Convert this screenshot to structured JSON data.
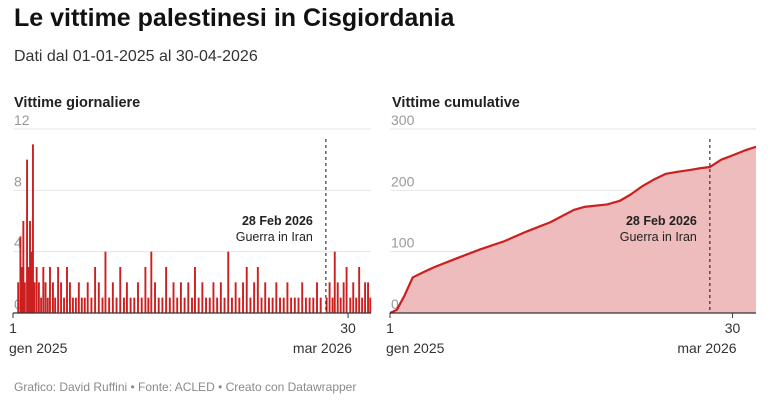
{
  "title": "Le vittime palestinesi in Cisgiordania",
  "subtitle": "Dati dal 01-01-2025 al 30-04-2026",
  "footer": "Grafico: David Ruffini • Fonte: ACLED • Creato con Datawrapper",
  "colors": {
    "series": "#cc1f1f",
    "area_fill": "#eebcbc",
    "grid": "#e6e6e6",
    "axis": "#333333"
  },
  "chart_data": [
    {
      "type": "bar",
      "title": "Vittime giornaliere",
      "x_range": [
        "2025-01-01",
        "2026-04-30"
      ],
      "ylim": [
        0,
        12
      ],
      "y_ticks": [
        0,
        4,
        8,
        12
      ],
      "x_ticks": [
        {
          "date": "2025-01-01",
          "day": "1",
          "month": "gen 2025"
        },
        {
          "date": "2026-03-30",
          "day": "30",
          "month": "mar 2026"
        }
      ],
      "annotation": {
        "date": "2026-02-28",
        "label": "28 Feb 2026",
        "text": "Guerra in Iran"
      },
      "grid": true,
      "series": [
        {
          "values_by_date": [
            [
              "2025-01-08",
              2
            ],
            [
              "2025-01-11",
              5
            ],
            [
              "2025-01-13",
              3
            ],
            [
              "2025-01-15",
              6
            ],
            [
              "2025-01-17",
              2
            ],
            [
              "2025-01-20",
              10
            ],
            [
              "2025-01-22",
              3
            ],
            [
              "2025-01-24",
              6
            ],
            [
              "2025-01-26",
              4
            ],
            [
              "2025-01-28",
              11
            ],
            [
              "2025-01-30",
              2
            ],
            [
              "2025-02-02",
              3
            ],
            [
              "2025-02-05",
              2
            ],
            [
              "2025-02-08",
              1
            ],
            [
              "2025-02-11",
              3
            ],
            [
              "2025-02-14",
              2
            ],
            [
              "2025-02-17",
              1
            ],
            [
              "2025-02-20",
              3
            ],
            [
              "2025-02-24",
              2
            ],
            [
              "2025-02-27",
              1
            ],
            [
              "2025-03-03",
              3
            ],
            [
              "2025-03-07",
              2
            ],
            [
              "2025-03-11",
              1
            ],
            [
              "2025-03-15",
              3
            ],
            [
              "2025-03-19",
              2
            ],
            [
              "2025-03-23",
              1
            ],
            [
              "2025-03-27",
              1
            ],
            [
              "2025-03-31",
              2
            ],
            [
              "2025-04-04",
              1
            ],
            [
              "2025-04-08",
              1
            ],
            [
              "2025-04-12",
              2
            ],
            [
              "2025-04-17",
              1
            ],
            [
              "2025-04-22",
              3
            ],
            [
              "2025-04-27",
              2
            ],
            [
              "2025-05-02",
              1
            ],
            [
              "2025-05-06",
              4
            ],
            [
              "2025-05-11",
              1
            ],
            [
              "2025-05-16",
              2
            ],
            [
              "2025-05-21",
              1
            ],
            [
              "2025-05-26",
              3
            ],
            [
              "2025-05-31",
              1
            ],
            [
              "2025-06-04",
              2
            ],
            [
              "2025-06-09",
              1
            ],
            [
              "2025-06-14",
              1
            ],
            [
              "2025-06-19",
              2
            ],
            [
              "2025-06-24",
              1
            ],
            [
              "2025-06-29",
              3
            ],
            [
              "2025-07-03",
              1
            ],
            [
              "2025-07-07",
              4
            ],
            [
              "2025-07-12",
              2
            ],
            [
              "2025-07-17",
              1
            ],
            [
              "2025-07-22",
              1
            ],
            [
              "2025-07-27",
              3
            ],
            [
              "2025-08-01",
              1
            ],
            [
              "2025-08-06",
              2
            ],
            [
              "2025-08-11",
              1
            ],
            [
              "2025-08-16",
              2
            ],
            [
              "2025-08-21",
              1
            ],
            [
              "2025-08-26",
              2
            ],
            [
              "2025-08-31",
              1
            ],
            [
              "2025-09-04",
              3
            ],
            [
              "2025-09-09",
              1
            ],
            [
              "2025-09-14",
              2
            ],
            [
              "2025-09-19",
              1
            ],
            [
              "2025-09-24",
              1
            ],
            [
              "2025-09-29",
              2
            ],
            [
              "2025-10-04",
              1
            ],
            [
              "2025-10-09",
              2
            ],
            [
              "2025-10-14",
              1
            ],
            [
              "2025-10-19",
              4
            ],
            [
              "2025-10-24",
              1
            ],
            [
              "2025-10-29",
              2
            ],
            [
              "2025-11-03",
              1
            ],
            [
              "2025-11-08",
              2
            ],
            [
              "2025-11-13",
              3
            ],
            [
              "2025-11-18",
              1
            ],
            [
              "2025-11-23",
              2
            ],
            [
              "2025-11-28",
              3
            ],
            [
              "2025-12-03",
              1
            ],
            [
              "2025-12-08",
              2
            ],
            [
              "2025-12-13",
              1
            ],
            [
              "2025-12-18",
              1
            ],
            [
              "2025-12-23",
              2
            ],
            [
              "2025-12-28",
              1
            ],
            [
              "2026-01-02",
              1
            ],
            [
              "2026-01-07",
              2
            ],
            [
              "2026-01-12",
              1
            ],
            [
              "2026-01-17",
              1
            ],
            [
              "2026-01-22",
              1
            ],
            [
              "2026-01-27",
              2
            ],
            [
              "2026-02-01",
              1
            ],
            [
              "2026-02-06",
              1
            ],
            [
              "2026-02-11",
              1
            ],
            [
              "2026-02-16",
              2
            ],
            [
              "2026-02-21",
              1
            ],
            [
              "2026-03-01",
              1
            ],
            [
              "2026-03-05",
              2
            ],
            [
              "2026-03-09",
              1
            ],
            [
              "2026-03-12",
              4
            ],
            [
              "2026-03-16",
              2
            ],
            [
              "2026-03-20",
              1
            ],
            [
              "2026-03-24",
              2
            ],
            [
              "2026-03-28",
              3
            ],
            [
              "2026-04-02",
              1
            ],
            [
              "2026-04-06",
              2
            ],
            [
              "2026-04-10",
              1
            ],
            [
              "2026-04-14",
              3
            ],
            [
              "2026-04-18",
              1
            ],
            [
              "2026-04-22",
              2
            ],
            [
              "2026-04-26",
              2
            ],
            [
              "2026-04-29",
              1
            ]
          ]
        }
      ]
    },
    {
      "type": "area",
      "title": "Vittime cumulative",
      "x_range": [
        "2025-01-01",
        "2026-04-30"
      ],
      "ylim": [
        0,
        300
      ],
      "y_ticks": [
        0,
        100,
        200,
        300
      ],
      "x_ticks": [
        {
          "date": "2025-01-01",
          "day": "1",
          "month": "gen 2025"
        },
        {
          "date": "2026-03-30",
          "day": "30",
          "month": "mar 2026"
        }
      ],
      "annotation": {
        "date": "2026-02-28",
        "label": "28 Feb 2026",
        "text": "Guerra in Iran"
      },
      "grid": true,
      "series": [
        {
          "values_by_date": [
            [
              "2025-01-01",
              0
            ],
            [
              "2025-01-10",
              5
            ],
            [
              "2025-01-20",
              28
            ],
            [
              "2025-01-31",
              58
            ],
            [
              "2025-02-15",
              67
            ],
            [
              "2025-03-01",
              75
            ],
            [
              "2025-04-01",
              90
            ],
            [
              "2025-05-01",
              104
            ],
            [
              "2025-06-01",
              117
            ],
            [
              "2025-07-01",
              133
            ],
            [
              "2025-08-01",
              148
            ],
            [
              "2025-09-01",
              168
            ],
            [
              "2025-09-15",
              173
            ],
            [
              "2025-10-15",
              177
            ],
            [
              "2025-11-01",
              183
            ],
            [
              "2025-11-15",
              193
            ],
            [
              "2025-12-01",
              207
            ],
            [
              "2025-12-15",
              217
            ],
            [
              "2026-01-01",
              227
            ],
            [
              "2026-01-15",
              230
            ],
            [
              "2026-02-01",
              233
            ],
            [
              "2026-02-15",
              236
            ],
            [
              "2026-02-28",
              238
            ],
            [
              "2026-03-15",
              250
            ],
            [
              "2026-03-30",
              257
            ],
            [
              "2026-04-15",
              265
            ],
            [
              "2026-04-30",
              271
            ]
          ]
        }
      ]
    }
  ]
}
